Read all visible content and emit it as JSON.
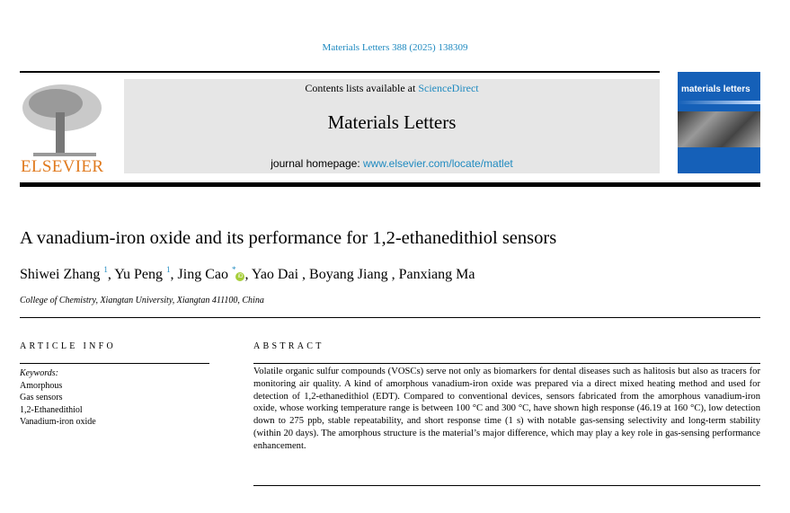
{
  "journal_ref": "Materials Letters 388 (2025) 138309",
  "header": {
    "contents_prefix": "Contents lists available at ",
    "sciencedirect": "ScienceDirect",
    "journal_title": "Materials Letters",
    "homepage_prefix": "journal homepage: ",
    "homepage_url": "www.elsevier.com/locate/matlet",
    "publisher": "ELSEVIER",
    "cover_title": "materials letters"
  },
  "colors": {
    "link": "#1f8ac0",
    "elsevier": "#e07a1e",
    "cover": "#1560b8",
    "orcid": "#a6ce39"
  },
  "article": {
    "title": "A vanadium-iron oxide and its performance for 1,2-ethanedithiol sensors",
    "authors": [
      {
        "name": "Shiwei Zhang",
        "sup": "1"
      },
      {
        "name": "Yu Peng",
        "sup": "1"
      },
      {
        "name": "Jing Cao",
        "sup": "*"
      },
      {
        "name": "Yao Dai"
      },
      {
        "name": "Boyang Jiang"
      },
      {
        "name": "Panxiang Ma"
      }
    ],
    "affiliation": "College of Chemistry, Xiangtan University, Xiangtan 411100, China",
    "article_info_heading": "ARTICLE INFO",
    "abstract_heading": "ABSTRACT",
    "keywords_label": "Keywords:",
    "keywords": [
      "Amorphous",
      "Gas sensors",
      "1,2-Ethanedithiol",
      "Vanadium-iron oxide"
    ],
    "abstract": "Volatile organic sulfur compounds (VOSCs) serve not only as biomarkers for dental diseases such as halitosis but also as tracers for monitoring air quality. A kind of amorphous vanadium-iron oxide was prepared via a direct mixed heating method and used for detection of 1,2-ethanedithiol (EDT). Compared to conventional devices, sensors fabricated from the amorphous vanadium-iron oxide, whose working temperature range is between 100 °C and 300 °C, have shown high response (46.19 at 160 °C), low detection down to 275 ppb, stable repeatability, and short response time (1 s) with notable gas-sensing selectivity and long-term stability (within 20 days). The amorphous structure is the material’s major difference, which may play a key role in gas-sensing performance enhancement."
  }
}
